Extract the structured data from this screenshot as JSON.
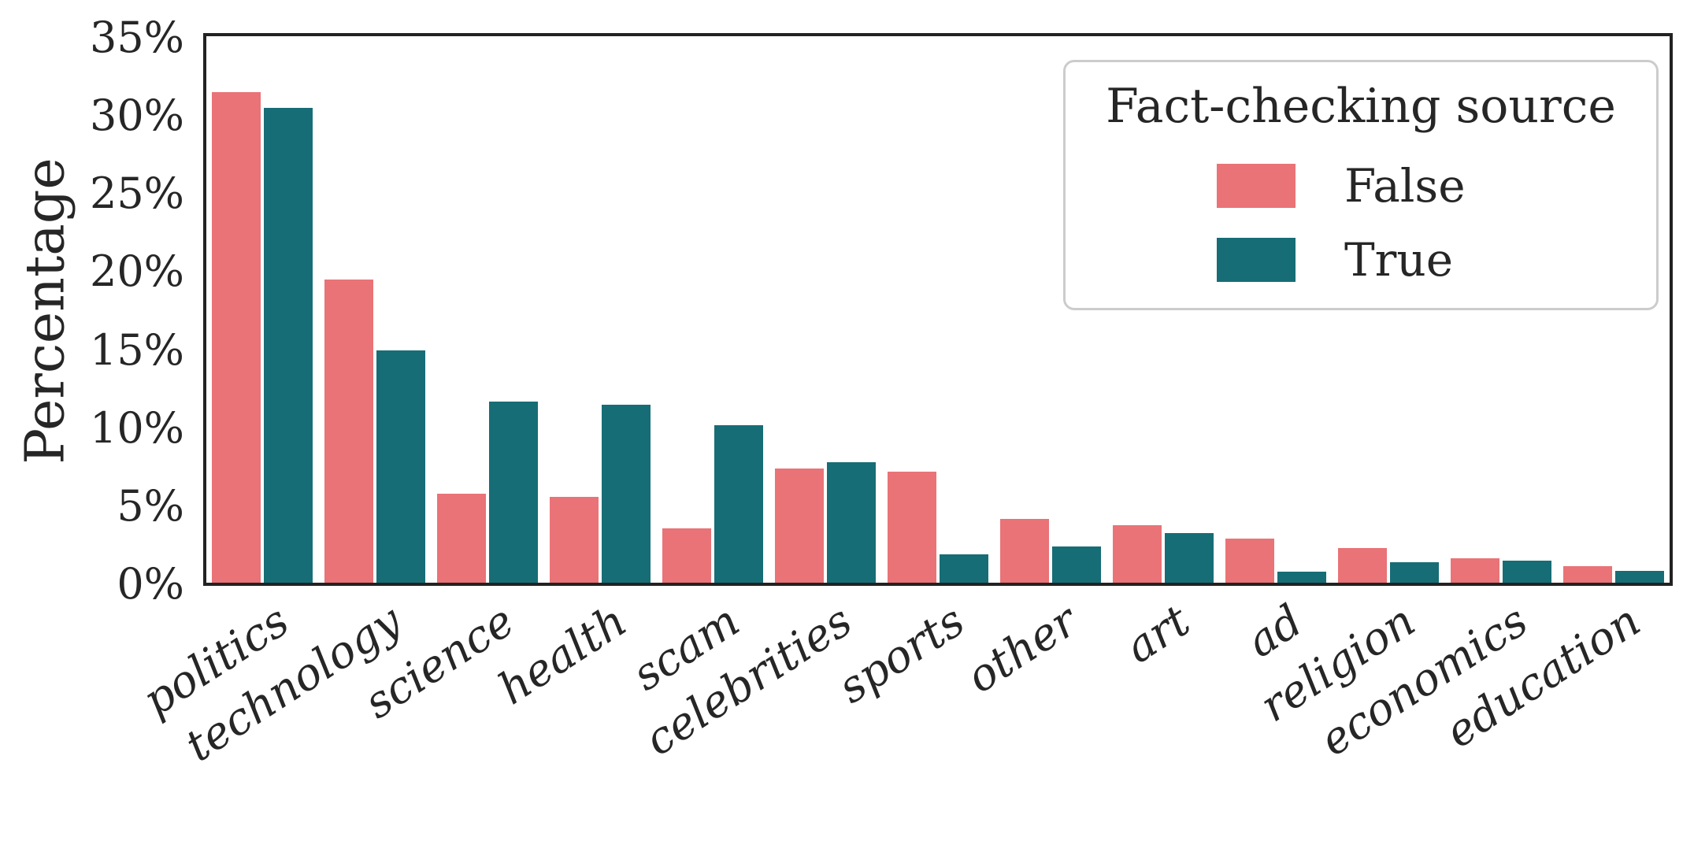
{
  "chart_data": {
    "type": "bar",
    "title": "",
    "xlabel": "",
    "ylabel": "Percentage",
    "categories": [
      "politics",
      "technology",
      "science",
      "health",
      "scam",
      "celebrities",
      "sports",
      "other",
      "art",
      "ad",
      "religion",
      "economics",
      "education"
    ],
    "series": [
      {
        "name": "False",
        "color": "#e97377",
        "values": [
          31.4,
          19.4,
          5.7,
          5.5,
          3.5,
          7.3,
          7.1,
          4.1,
          3.7,
          2.8,
          2.2,
          1.55,
          1.05
        ]
      },
      {
        "name": "True",
        "color": "#166d76",
        "values": [
          30.4,
          14.9,
          11.6,
          11.4,
          10.1,
          7.7,
          1.8,
          2.3,
          3.2,
          0.7,
          1.3,
          1.4,
          0.75
        ]
      }
    ],
    "y_ticks": [
      "0%",
      "5%",
      "10%",
      "15%",
      "20%",
      "25%",
      "30%",
      "35%"
    ],
    "ylim": [
      0,
      35.1
    ],
    "grid": false,
    "legend": {
      "title": "Fact-checking source",
      "position": "upper right"
    },
    "frame_color": "#222222",
    "text_color": "#262626"
  }
}
